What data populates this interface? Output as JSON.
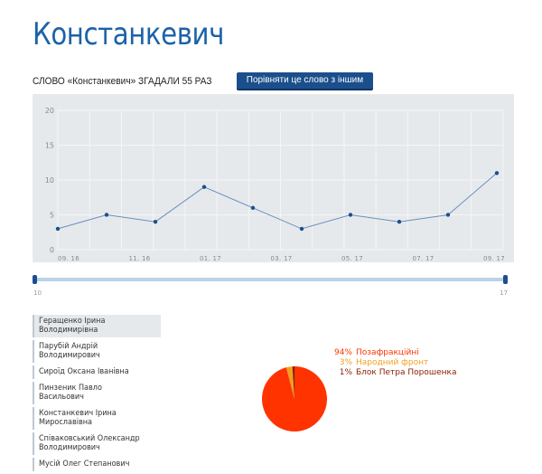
{
  "header": {
    "title": "Констанкевич"
  },
  "mention": {
    "sentence": "СЛОВО «Констанкевич» ЗГАДАЛИ 55 РАЗ",
    "compare_button": "Порівняти це слово з іншим"
  },
  "chart_data": {
    "type": "line",
    "title": "",
    "xlabel": "",
    "ylabel": "",
    "ylim": [
      0,
      20
    ],
    "yticks": [
      "0",
      "5",
      "10",
      "15",
      "20"
    ],
    "xticks": [
      "09. 16",
      "11. 16",
      "01. 17",
      "03. 17",
      "05. 17",
      "07. 17",
      "09. 17"
    ],
    "grid": true,
    "series": [
      {
        "values": [
          3,
          5,
          4,
          9,
          6,
          3,
          5,
          4,
          5,
          11
        ]
      }
    ]
  },
  "range_slider": {
    "min_label": "10",
    "max_label": "17"
  },
  "deputies": [
    "Геращенко Ірина Володимирівна",
    "Парубій Андрій Володимирович",
    "Сироїд Оксана Іванівна",
    "Пинзеник Павло Васильович",
    "Констанкевич Ірина Мирославівна",
    "Співаковський Олександр Володимирович",
    "Мусій Олег Степанович"
  ],
  "factions": [
    {
      "pct": "94%",
      "name": "Позафракційні",
      "value": 94,
      "color": "#ff3300"
    },
    {
      "pct": "3%",
      "name": "Народний фронт",
      "value": 3,
      "color": "#f0a020"
    },
    {
      "pct": "1%",
      "name": "Блок Петра Порошенка",
      "value": 1,
      "color": "#8a1a00"
    }
  ]
}
